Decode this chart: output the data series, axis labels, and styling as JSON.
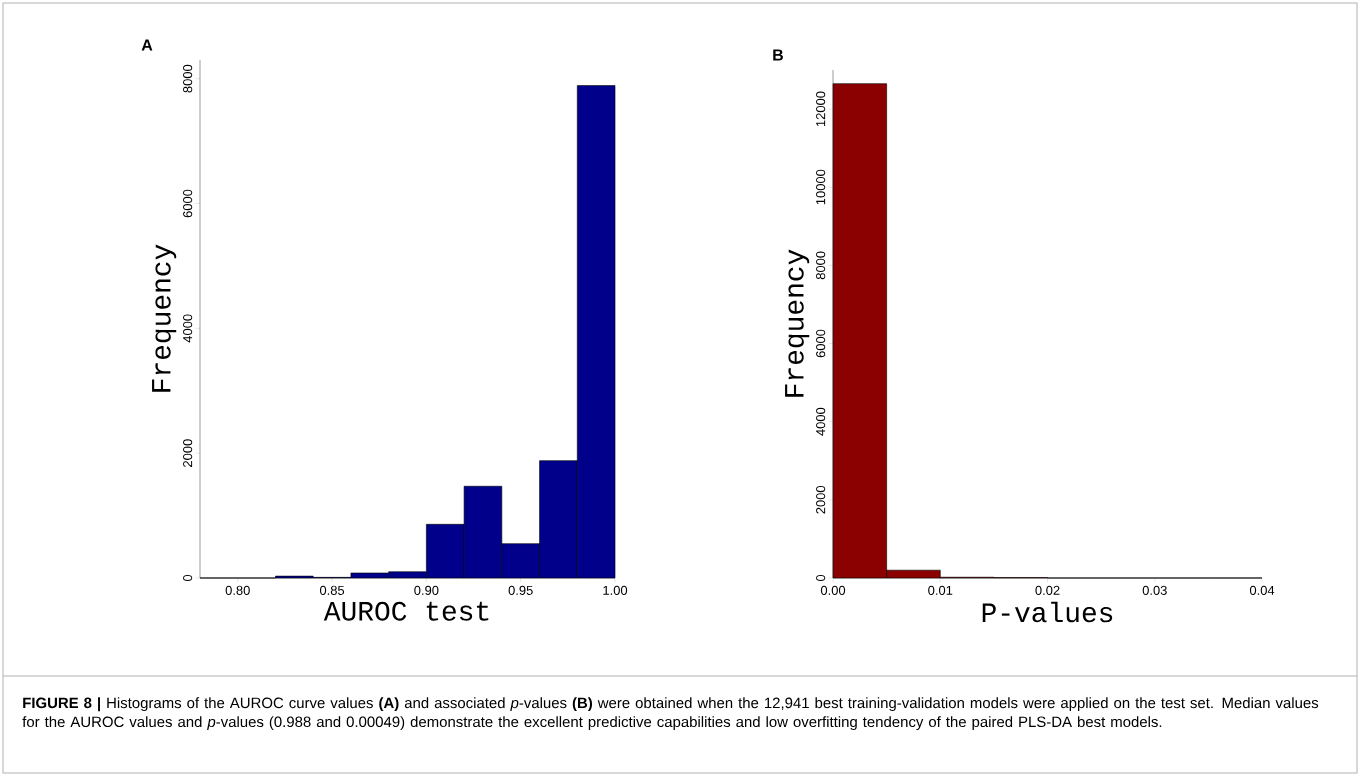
{
  "chart_data": [
    {
      "type": "histogram",
      "title": "A",
      "xlabel": "AUROC test",
      "ylabel": "Frequency",
      "color": "#00008b",
      "bins": [
        0.78,
        0.8,
        0.82,
        0.84,
        0.86,
        0.88,
        0.9,
        0.92,
        0.94,
        0.96,
        0.98,
        1.0
      ],
      "values": [
        0,
        0,
        30,
        10,
        80,
        100,
        860,
        1470,
        550,
        1880,
        7890
      ],
      "xlim": [
        0.78,
        1.0
      ],
      "ylim": [
        0,
        8300
      ],
      "xticks": [
        {
          "value": 0.8,
          "label": "0.80"
        },
        {
          "value": 0.85,
          "label": "0.85"
        },
        {
          "value": 0.9,
          "label": "0.90"
        },
        {
          "value": 0.95,
          "label": "0.95"
        },
        {
          "value": 1.0,
          "label": "1.00"
        }
      ],
      "yticks": [
        0,
        2000,
        4000,
        6000,
        8000
      ],
      "annotations": [
        "**FIGURE 8 |** Histograms of the AUROC curve values **(A)** and associated *p*-values **(B)** were obtained when the 12,941 best training-validation models were applied on the test set. Median values for the AUROC values and *p*-values (0.988 and 0.00049) demonstrate the excellent predictive capabilities and low overfitting tendency of the paired PLS-DA best models."
      ]
    },
    {
      "type": "histogram",
      "title": "B",
      "xlabel": "P-values",
      "ylabel": "Frequency",
      "color": "#8b0000",
      "bins": [
        0.0,
        0.005,
        0.01,
        0.015,
        0.02,
        0.025,
        0.03,
        0.035,
        0.04
      ],
      "values": [
        12650,
        200,
        20,
        10,
        0,
        0,
        0,
        0
      ],
      "xlim": [
        0.0,
        0.04
      ],
      "ylim": [
        0,
        13000
      ],
      "xticks": [
        {
          "value": 0.0,
          "label": "0.00"
        },
        {
          "value": 0.01,
          "label": "0.01"
        },
        {
          "value": 0.02,
          "label": "0.02"
        },
        {
          "value": 0.03,
          "label": "0.03"
        },
        {
          "value": 0.04,
          "label": "0.04"
        }
      ],
      "yticks": [
        0,
        2000,
        4000,
        6000,
        8000,
        10000,
        12000
      ]
    }
  ]
}
